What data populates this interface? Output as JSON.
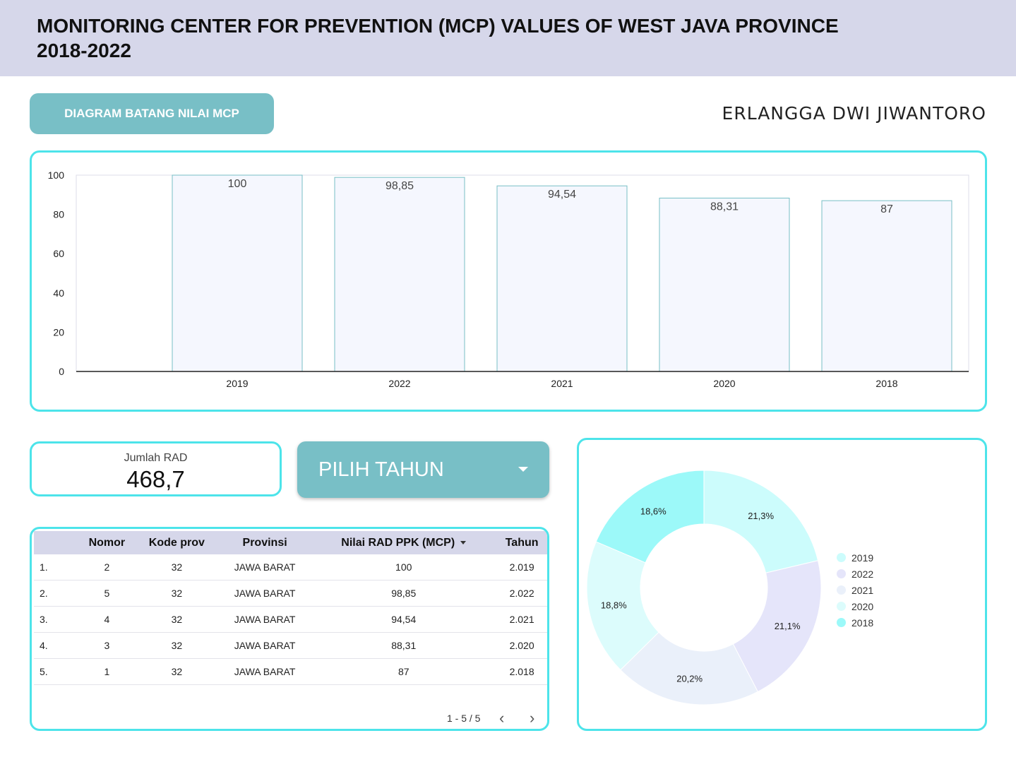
{
  "header": {
    "title": "MONITORING CENTER FOR PREVENTION (MCP) VALUES OF WEST JAVA PROVINCE 2018-2022"
  },
  "section_button": "DIAGRAM BATANG NILAI MCP",
  "author": "ERLANGGA DWI JIWANTORO",
  "kpi": {
    "label": "Jumlah RAD",
    "value": "468,7"
  },
  "dropdown": {
    "label": "PILIH TAHUN"
  },
  "table": {
    "headers": [
      "Nomor",
      "Kode prov",
      "Provinsi",
      "Nilai RAD PPK (MCP)",
      "Tahun"
    ],
    "rows": [
      {
        "idx": "1.",
        "nomor": "2",
        "kode": "32",
        "prov": "JAWA BARAT",
        "nilai": "100",
        "tahun": "2.019"
      },
      {
        "idx": "2.",
        "nomor": "5",
        "kode": "32",
        "prov": "JAWA BARAT",
        "nilai": "98,85",
        "tahun": "2.022"
      },
      {
        "idx": "3.",
        "nomor": "4",
        "kode": "32",
        "prov": "JAWA BARAT",
        "nilai": "94,54",
        "tahun": "2.021"
      },
      {
        "idx": "4.",
        "nomor": "3",
        "kode": "32",
        "prov": "JAWA BARAT",
        "nilai": "88,31",
        "tahun": "2.020"
      },
      {
        "idx": "5.",
        "nomor": "1",
        "kode": "32",
        "prov": "JAWA BARAT",
        "nilai": "87",
        "tahun": "2.018"
      }
    ],
    "pager": "1 - 5 / 5",
    "prev_icon": "chevron-left-icon",
    "next_icon": "chevron-right-icon"
  },
  "chart_data": [
    {
      "type": "bar",
      "categories": [
        "2019",
        "2022",
        "2021",
        "2020",
        "2018"
      ],
      "values": [
        100,
        98.85,
        94.54,
        88.31,
        87
      ],
      "labels": [
        "100",
        "98,85",
        "94,54",
        "88,31",
        "87"
      ],
      "yticks": [
        "0",
        "20",
        "40",
        "60",
        "80",
        "100"
      ],
      "ylim": [
        0,
        100
      ],
      "bar_fill": "#f5f7fe",
      "bar_stroke": "#78bfc6"
    },
    {
      "type": "pie",
      "categories": [
        "2019",
        "2022",
        "2021",
        "2020",
        "2018"
      ],
      "values": [
        21.3,
        21.1,
        20.2,
        18.8,
        18.6
      ],
      "labels": [
        "21,3%",
        "21,1%",
        "20,2%",
        "18,8%",
        "18,6%"
      ],
      "colors": [
        "#ccfcfc",
        "#e5e5fa",
        "#eaf0fa",
        "#dcfcfc",
        "#9cf9f9"
      ],
      "donut": true,
      "legend": "right"
    }
  ]
}
